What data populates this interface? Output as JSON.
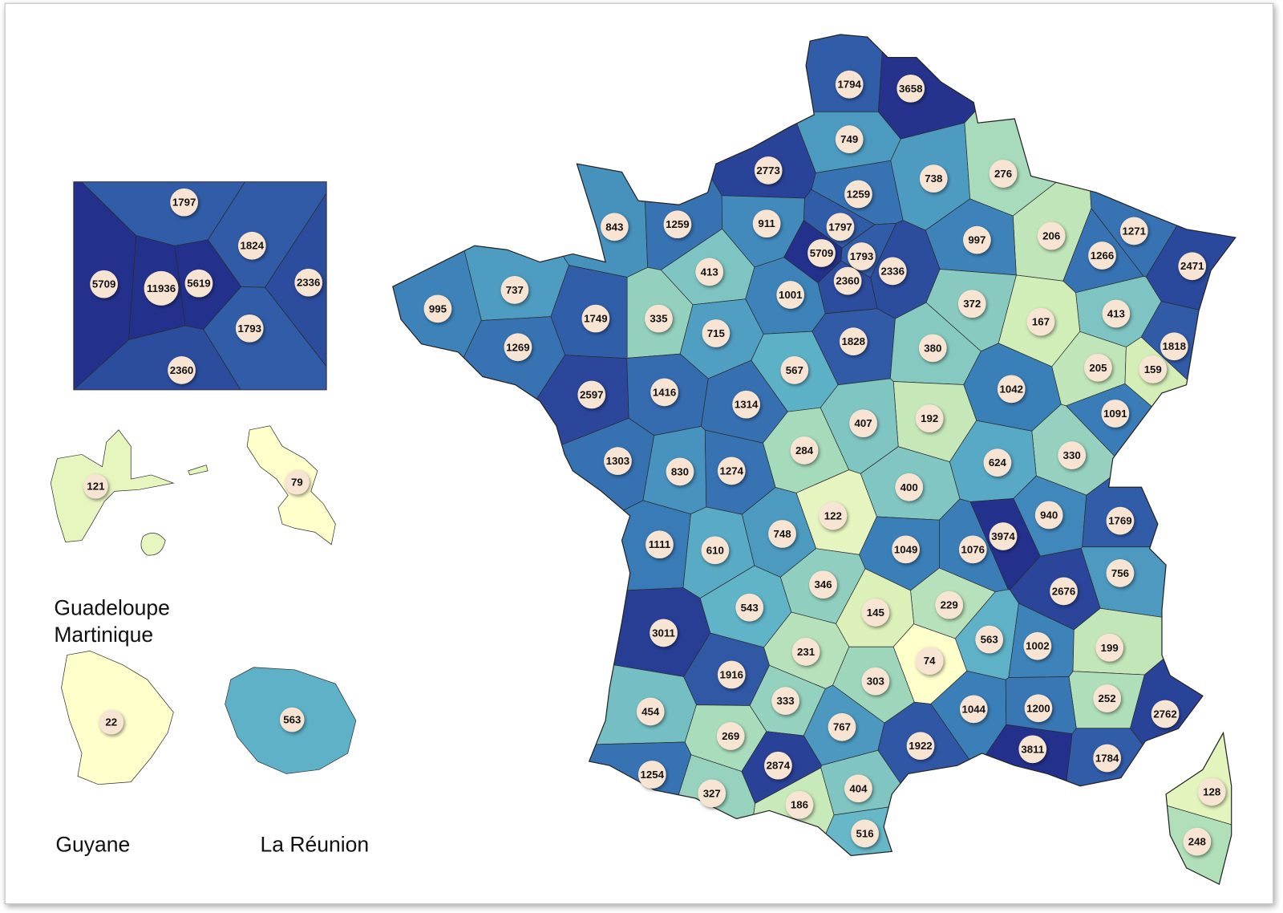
{
  "map": {
    "departments": [
      1794,
      3658,
      749,
      2773,
      738,
      276,
      1259,
      843,
      1259,
      911,
      1797,
      206,
      1271,
      997,
      5709,
      1793,
      1266,
      2471,
      2336,
      413,
      2360,
      737,
      1001,
      995,
      372,
      413,
      335,
      1749,
      167,
      715,
      1828,
      380,
      1269,
      1818,
      567,
      205,
      159,
      1042,
      2597,
      1416,
      1314,
      1091,
      192,
      407,
      284,
      330,
      1303,
      830,
      1274,
      624,
      400,
      940,
      122,
      1769,
      748,
      3974,
      1111,
      610,
      1049,
      1076,
      756,
      2676,
      346,
      543,
      229,
      145,
      3011,
      563,
      1002,
      199,
      231,
      74,
      1916,
      303,
      252,
      333,
      1044,
      1200,
      2762,
      454,
      767,
      269,
      1922,
      3811,
      1784,
      2874,
      1254,
      404,
      327,
      186,
      128,
      516,
      248
    ],
    "paris_inset": [
      1797,
      1824,
      5709,
      11936,
      5619,
      2336,
      1793,
      2360
    ],
    "overseas": {
      "values": [
        121,
        79,
        22,
        563
      ],
      "labels": [
        "Guadeloupe",
        "Martinique",
        "Guyane",
        "La Réunion"
      ]
    }
  }
}
